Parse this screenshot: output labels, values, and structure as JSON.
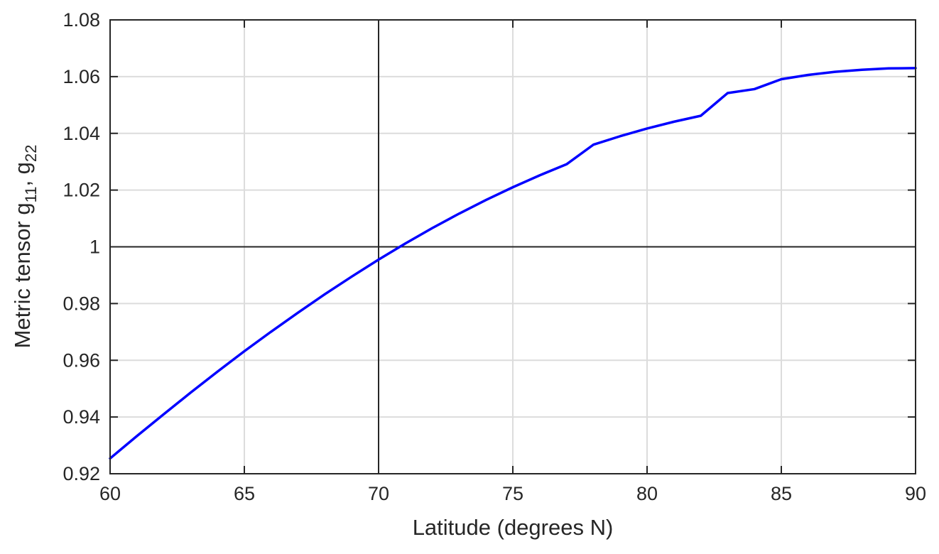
{
  "chart_data": {
    "type": "line",
    "title": "",
    "xlabel": "Latitude (degrees N)",
    "ylabel": {
      "prefix": "Metric tensor g",
      "sub1": "11",
      "separator": ", g",
      "sub2": "22"
    },
    "xlim": [
      60,
      90
    ],
    "ylim": [
      0.92,
      1.08
    ],
    "xticks": [
      60,
      65,
      70,
      75,
      80,
      85,
      90
    ],
    "xtick_labels": [
      "60",
      "65",
      "70",
      "75",
      "80",
      "85",
      "90"
    ],
    "yticks": [
      0.92,
      0.94,
      0.96,
      0.98,
      1.0,
      1.02,
      1.04,
      1.06,
      1.08
    ],
    "ytick_labels": [
      "0.92",
      "0.94",
      "0.96",
      "0.98",
      "1",
      "1.02",
      "1.04",
      "1.06",
      "1.08"
    ],
    "grid": true,
    "reference_lines": {
      "x": 70,
      "y": 1
    },
    "colors": {
      "series": "#0000ff",
      "axes": "#262626",
      "grid": "#dcdcdc",
      "reference": "#262626"
    },
    "series": [
      {
        "x": [
          60,
          61,
          62,
          63,
          64,
          65,
          66,
          67,
          68,
          69,
          70,
          71,
          72,
          73,
          74,
          75,
          76,
          77,
          78,
          79,
          80,
          81,
          82,
          83,
          84,
          85,
          86,
          87,
          88,
          89,
          90
        ],
        "values": [
          0.9254,
          0.9333,
          0.941,
          0.9486,
          0.956,
          0.9632,
          0.9701,
          0.9768,
          0.9833,
          0.9895,
          0.9955,
          1.0012,
          1.0066,
          1.0117,
          1.0165,
          1.021,
          1.0252,
          1.0291,
          1.036,
          1.039,
          1.0417,
          1.0441,
          1.0462,
          1.0542,
          1.0556,
          1.0591,
          1.0606,
          1.0617,
          1.0624,
          1.0629,
          1.063
        ]
      }
    ]
  }
}
